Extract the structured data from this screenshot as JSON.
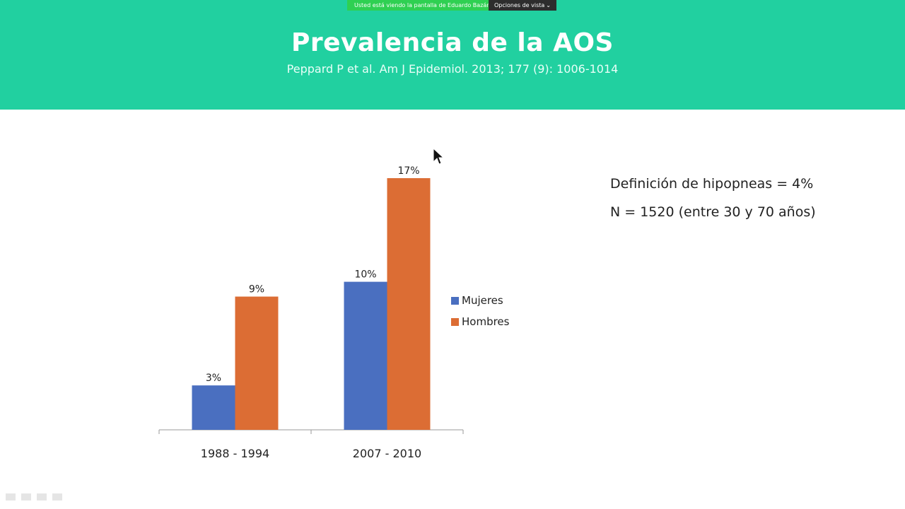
{
  "slide": {
    "title": "Prevalencia de la AOS",
    "subtitle": "Peppard P et al. Am J Epidemiol. 2013; 177 (9): 1006-1014"
  },
  "zoom": {
    "viewing_label": "Usted está viendo la pantalla de Eduardo Bazán",
    "options_label": "Opciones de vista",
    "options_chevron": "⌄"
  },
  "notes": [
    "Definición de hipopneas = 4%",
    "N = 1520 (entre 30 y 70 años)"
  ],
  "chart_data": {
    "type": "bar",
    "categories": [
      "1988 - 1994",
      "2007 - 2010"
    ],
    "series": [
      {
        "name": "Mujeres",
        "values": [
          3,
          10
        ],
        "labels": [
          "3%",
          "10%"
        ],
        "color": "#4a6fc0"
      },
      {
        "name": "Hombres",
        "values": [
          9,
          17
        ],
        "labels": [
          "9%",
          "17%"
        ],
        "color": "#dc6d34"
      }
    ],
    "ylim": [
      0,
      17
    ],
    "grid": false,
    "legend": "right"
  },
  "icons": [
    "cursor-icon"
  ]
}
